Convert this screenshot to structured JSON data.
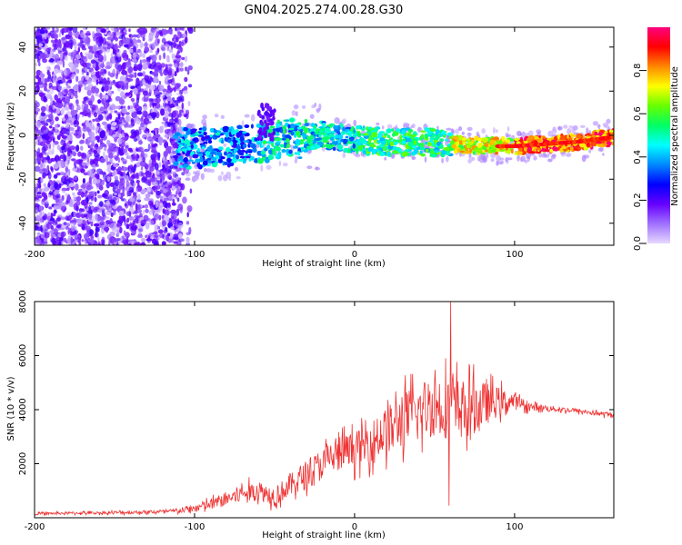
{
  "chart_data": [
    {
      "type": "heatmap",
      "title": "GN04.2025.274.00.28.G30",
      "xlabel": "Height of straight line (km)",
      "ylabel": "Frequency (Hz)",
      "xlim": [
        -200,
        162
      ],
      "ylim": [
        -50,
        49
      ],
      "xticks": [
        -200,
        -100,
        0,
        100
      ],
      "yticks": [
        -40,
        -20,
        0,
        20,
        40
      ],
      "noise_region_x": [
        -200,
        -108
      ],
      "signal_ridge": {
        "x": [
          -120,
          -100,
          -80,
          -60,
          -40,
          -20,
          0,
          20,
          40,
          60,
          80,
          100,
          120,
          140,
          160
        ],
        "y": [
          -6,
          -6,
          -5,
          -4,
          -2,
          0,
          -2,
          -3,
          -3,
          -4,
          -5,
          -5,
          -4,
          -3,
          -1
        ]
      },
      "colorbar": {
        "label": "Normalized spectral amplitude",
        "range": [
          0,
          1
        ],
        "ticks": [
          0.0,
          0.2,
          0.4,
          0.6,
          0.8
        ],
        "colors": [
          "#e6d8ff",
          "#a070ff",
          "#6600ff",
          "#0000ff",
          "#0088ff",
          "#00ffff",
          "#00ff66",
          "#66ff00",
          "#ffff00",
          "#ff8800",
          "#ff0000",
          "#ff0080"
        ]
      }
    },
    {
      "type": "line",
      "title": "",
      "xlabel": "Height of straight line (km)",
      "ylabel": "SNR (10 * v/v)",
      "xlim": [
        -200,
        162
      ],
      "ylim": [
        0,
        8000
      ],
      "xticks": [
        -200,
        -100,
        0,
        100
      ],
      "yticks": [
        2000,
        4000,
        6000,
        8000
      ],
      "color": "#ee3333",
      "series": {
        "name": "SNR",
        "x": [
          -200,
          -180,
          -160,
          -140,
          -120,
          -110,
          -100,
          -90,
          -80,
          -70,
          -60,
          -50,
          -40,
          -30,
          -20,
          -10,
          0,
          10,
          20,
          30,
          40,
          50,
          60,
          70,
          80,
          90,
          100,
          110,
          120,
          140,
          160
        ],
        "y": [
          150,
          170,
          180,
          200,
          220,
          250,
          350,
          500,
          700,
          900,
          1000,
          800,
          1200,
          1600,
          2000,
          2400,
          2500,
          2800,
          3200,
          3600,
          3900,
          4200,
          4100,
          4000,
          4200,
          4300,
          4300,
          4100,
          4050,
          3950,
          3800
        ],
        "spread": [
          80,
          80,
          90,
          100,
          120,
          150,
          250,
          350,
          450,
          550,
          600,
          600,
          700,
          900,
          1000,
          1100,
          1100,
          1300,
          1500,
          1700,
          1900,
          2000,
          2000,
          1800,
          1400,
          900,
          500,
          250,
          180,
          150,
          150
        ],
        "peak": {
          "x": 60,
          "y": 8000
        },
        "dip": {
          "x": 59,
          "y": 450
        }
      }
    }
  ]
}
